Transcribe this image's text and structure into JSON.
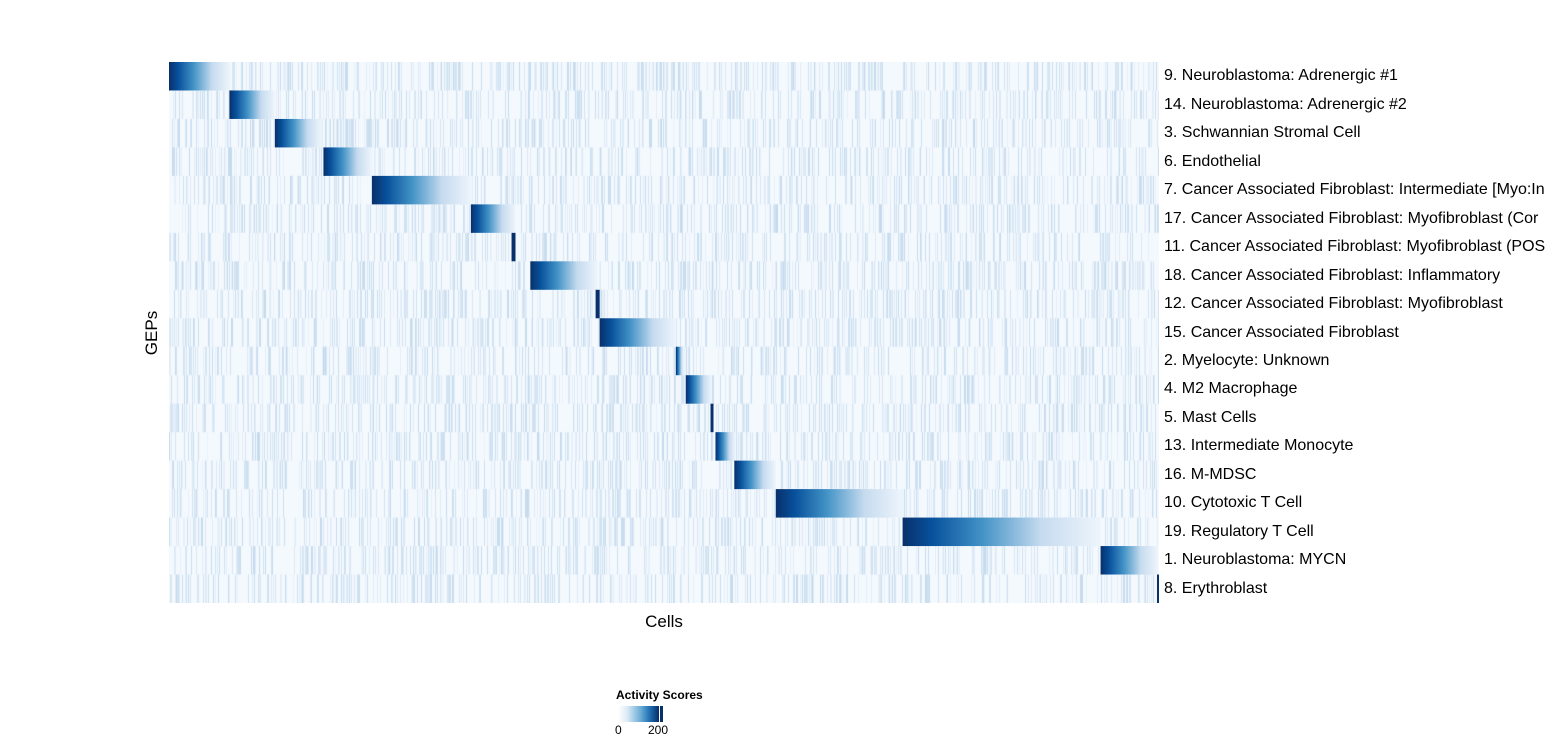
{
  "chart_data": {
    "type": "heatmap",
    "xlabel": "Cells",
    "ylabel": "GEPs",
    "colorbar": {
      "title": "Activity Scores",
      "ticks": [
        "0",
        "200"
      ],
      "range": [
        0,
        220
      ],
      "colors": [
        "#ffffff",
        "#deebf7",
        "#6baed6",
        "#2171b5",
        "#08306b"
      ]
    },
    "background_color": "#f4f9fe",
    "rows": [
      {
        "label": "9. Neuroblastoma: Adrenergic #1",
        "cells_pct": [
          0,
          6.2
        ]
      },
      {
        "label": "14. Neuroblastoma: Adrenergic #2",
        "cells_pct": [
          6.1,
          10.7
        ]
      },
      {
        "label": "3. Schwannian Stromal Cell",
        "cells_pct": [
          10.7,
          15.4
        ]
      },
      {
        "label": "6. Endothelial",
        "cells_pct": [
          15.6,
          20.5
        ]
      },
      {
        "label": "7. Cancer Associated Fibroblast: Intermediate [Myo:In",
        "cells_pct": [
          20.5,
          30.6
        ]
      },
      {
        "label": "17. Cancer Associated Fibroblast: Myofibroblast (Cor",
        "cells_pct": [
          30.5,
          35.0
        ]
      },
      {
        "label": "11. Cancer Associated Fibroblast: Myofibroblast (POS",
        "cells_pct": [
          34.6,
          35.0
        ]
      },
      {
        "label": "18. Cancer Associated Fibroblast: Inflammatory",
        "cells_pct": [
          36.5,
          43.3
        ]
      },
      {
        "label": "12. Cancer Associated Fibroblast: Myofibroblast",
        "cells_pct": [
          43.1,
          43.5
        ]
      },
      {
        "label": "15. Cancer Associated Fibroblast",
        "cells_pct": [
          43.5,
          51.2
        ]
      },
      {
        "label": "2. Myelocyte: Unknown",
        "cells_pct": [
          51.2,
          52.0
        ]
      },
      {
        "label": "4. M2 Macrophage",
        "cells_pct": [
          52.2,
          54.8
        ]
      },
      {
        "label": "5. Mast Cells",
        "cells_pct": [
          54.7,
          55.0
        ]
      },
      {
        "label": "13. Intermediate Monocyte",
        "cells_pct": [
          55.2,
          57.2
        ]
      },
      {
        "label": "16. M-MDSC",
        "cells_pct": [
          57.1,
          61.3
        ]
      },
      {
        "label": "10. Cytotoxic T Cell",
        "cells_pct": [
          61.3,
          74.1
        ]
      },
      {
        "label": "19. Regulatory T Cell",
        "cells_pct": [
          74.1,
          94.1
        ]
      },
      {
        "label": "1. Neuroblastoma: MYCN",
        "cells_pct": [
          94.1,
          99.9
        ]
      },
      {
        "label": "8. Erythroblast",
        "cells_pct": [
          99.8,
          100
        ]
      }
    ]
  }
}
